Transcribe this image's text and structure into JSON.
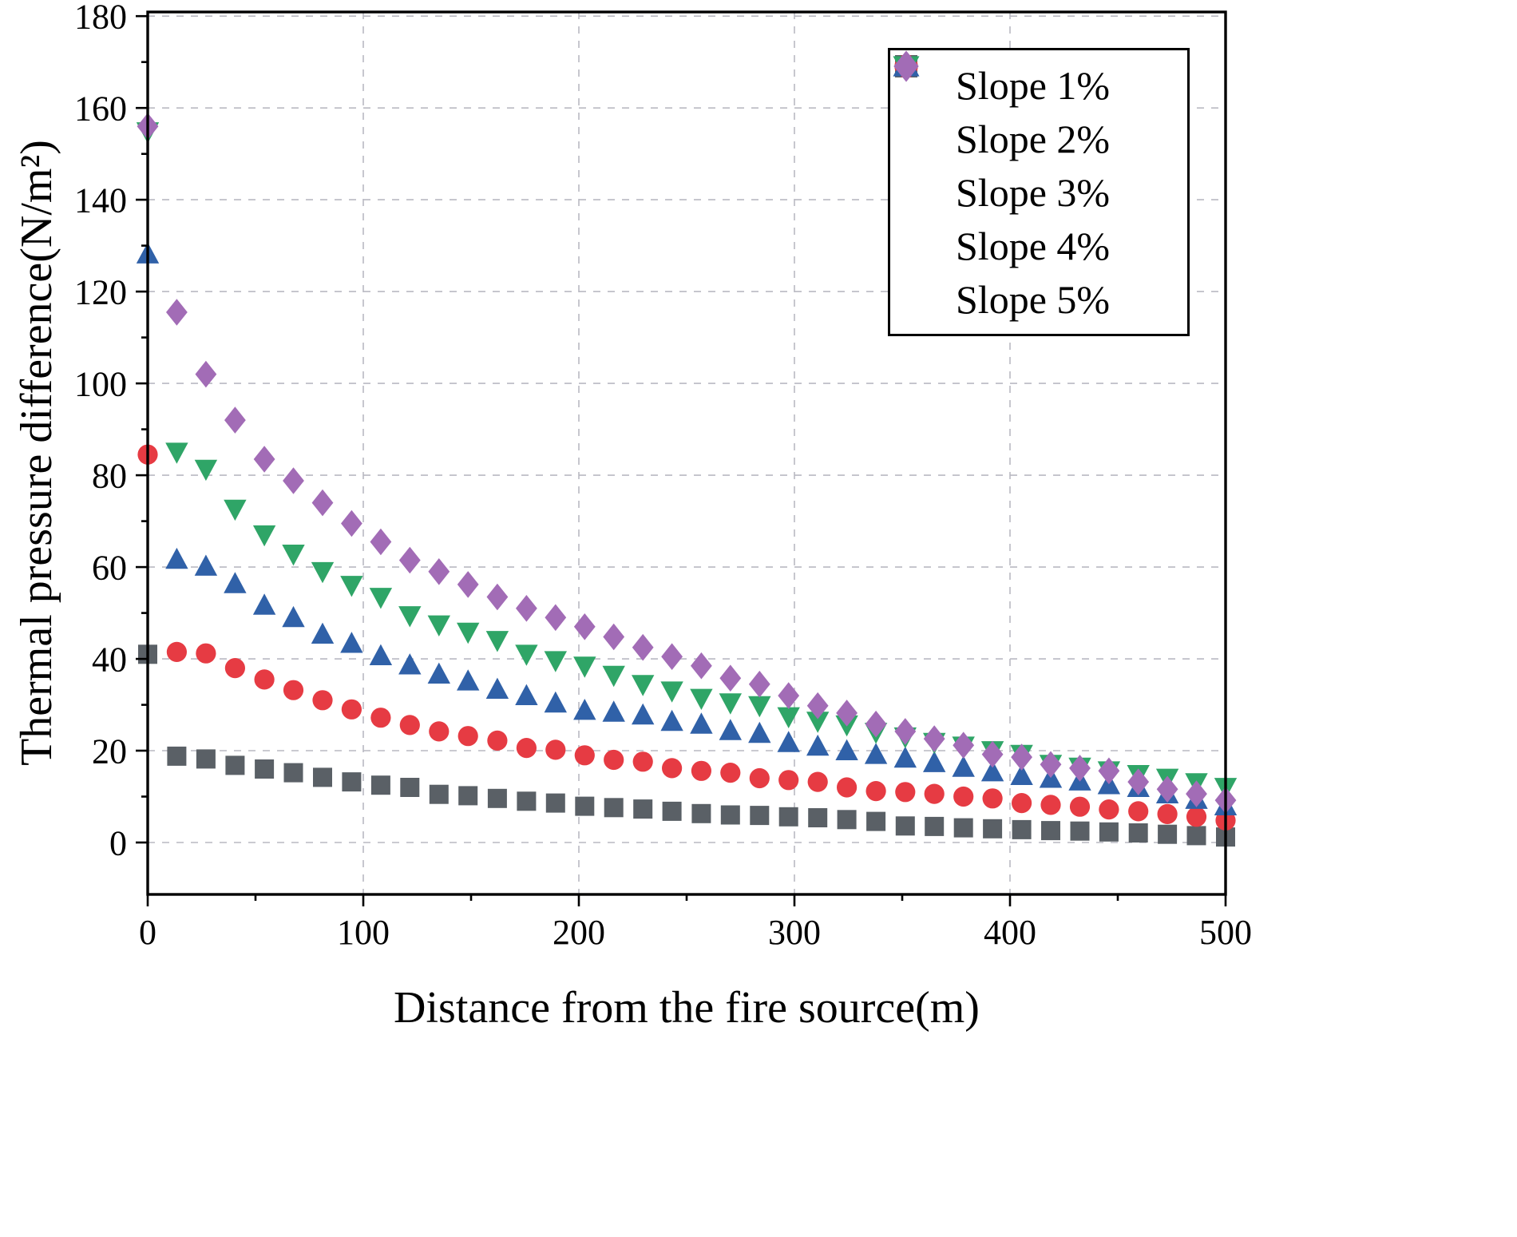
{
  "figure": {
    "kind": "scatter-figure"
  },
  "chart_data": {
    "type": "scatter",
    "title": "",
    "xlabel": "Distance from the fire source(m)",
    "ylabel": "Thermal pressure difference(N/m²)",
    "xlim": [
      0,
      500
    ],
    "ylim": [
      0,
      180
    ],
    "x_ticks": [
      0,
      100,
      200,
      300,
      400,
      500
    ],
    "y_ticks": [
      0,
      20,
      40,
      60,
      80,
      100,
      120,
      140,
      160,
      180
    ],
    "x_minor_step": 50,
    "y_minor_step": 10,
    "grid": "dashed-major",
    "legend_position": "top-right",
    "x": [
      0,
      13.5,
      27.0,
      40.5,
      54.1,
      67.6,
      81.1,
      94.6,
      108.1,
      121.6,
      135.1,
      148.6,
      162.2,
      175.7,
      189.2,
      202.7,
      216.2,
      229.7,
      243.2,
      256.8,
      270.3,
      283.8,
      297.3,
      310.8,
      324.3,
      337.8,
      351.4,
      364.9,
      378.4,
      391.9,
      405.4,
      418.9,
      432.4,
      445.9,
      459.5,
      473.0,
      486.5,
      500.0
    ],
    "series": [
      {
        "name": "Slope 1%",
        "marker": "square",
        "color": "#5a6066",
        "values": [
          41.0,
          18.8,
          18.2,
          16.8,
          16.0,
          15.2,
          14.2,
          13.2,
          12.5,
          12.0,
          10.5,
          10.2,
          9.6,
          9.0,
          8.6,
          7.9,
          7.6,
          7.3,
          6.8,
          6.3,
          6.0,
          5.9,
          5.6,
          5.4,
          5.0,
          4.6,
          3.6,
          3.5,
          3.2,
          3.0,
          2.8,
          2.6,
          2.5,
          2.3,
          2.1,
          1.8,
          1.5,
          1.2
        ]
      },
      {
        "name": "Slope 2%",
        "marker": "circle",
        "color": "#e63b43",
        "values": [
          84.5,
          41.5,
          41.2,
          38.0,
          35.5,
          33.2,
          31.0,
          29.0,
          27.2,
          25.6,
          24.2,
          23.2,
          22.2,
          20.6,
          20.2,
          19.0,
          18.0,
          17.6,
          16.2,
          15.6,
          15.2,
          14.0,
          13.6,
          13.2,
          12.0,
          11.2,
          11.0,
          10.6,
          10.0,
          9.6,
          8.6,
          8.2,
          7.8,
          7.2,
          6.8,
          6.2,
          5.6,
          4.8
        ]
      },
      {
        "name": "Slope 3%",
        "marker": "triangle-up",
        "color": "#3061a8",
        "values": [
          128.0,
          61.5,
          60.0,
          56.2,
          51.5,
          48.8,
          45.2,
          43.2,
          40.5,
          38.5,
          36.5,
          35.0,
          33.2,
          31.8,
          30.2,
          28.6,
          28.2,
          27.6,
          26.2,
          25.6,
          24.2,
          23.6,
          21.6,
          20.8,
          19.8,
          19.0,
          18.2,
          17.2,
          16.2,
          15.2,
          14.4,
          13.8,
          13.2,
          12.4,
          11.8,
          10.4,
          9.2,
          7.8
        ]
      },
      {
        "name": "Slope 4%",
        "marker": "triangle-down",
        "color": "#2fa567",
        "values": [
          155.0,
          85.2,
          81.5,
          72.8,
          67.2,
          63.0,
          59.2,
          56.2,
          53.6,
          49.6,
          47.6,
          46.0,
          44.2,
          41.2,
          39.8,
          38.6,
          36.6,
          34.6,
          33.2,
          31.6,
          30.6,
          30.0,
          27.6,
          26.6,
          25.8,
          24.2,
          23.2,
          22.0,
          21.2,
          20.2,
          19.4,
          17.2,
          16.6,
          15.8,
          15.0,
          14.2,
          13.2,
          12.2
        ]
      },
      {
        "name": "Slope 5%",
        "marker": "diamond",
        "color": "#a26cb6",
        "values": [
          156.0,
          115.5,
          102.0,
          92.0,
          83.5,
          78.8,
          74.0,
          69.5,
          65.5,
          61.5,
          59.0,
          56.2,
          53.5,
          51.0,
          49.0,
          47.0,
          44.8,
          42.5,
          40.5,
          38.5,
          35.8,
          34.5,
          32.0,
          29.8,
          28.2,
          25.8,
          24.2,
          22.6,
          21.2,
          19.2,
          18.6,
          17.0,
          16.2,
          15.6,
          13.2,
          11.6,
          10.6,
          9.2
        ]
      }
    ]
  }
}
